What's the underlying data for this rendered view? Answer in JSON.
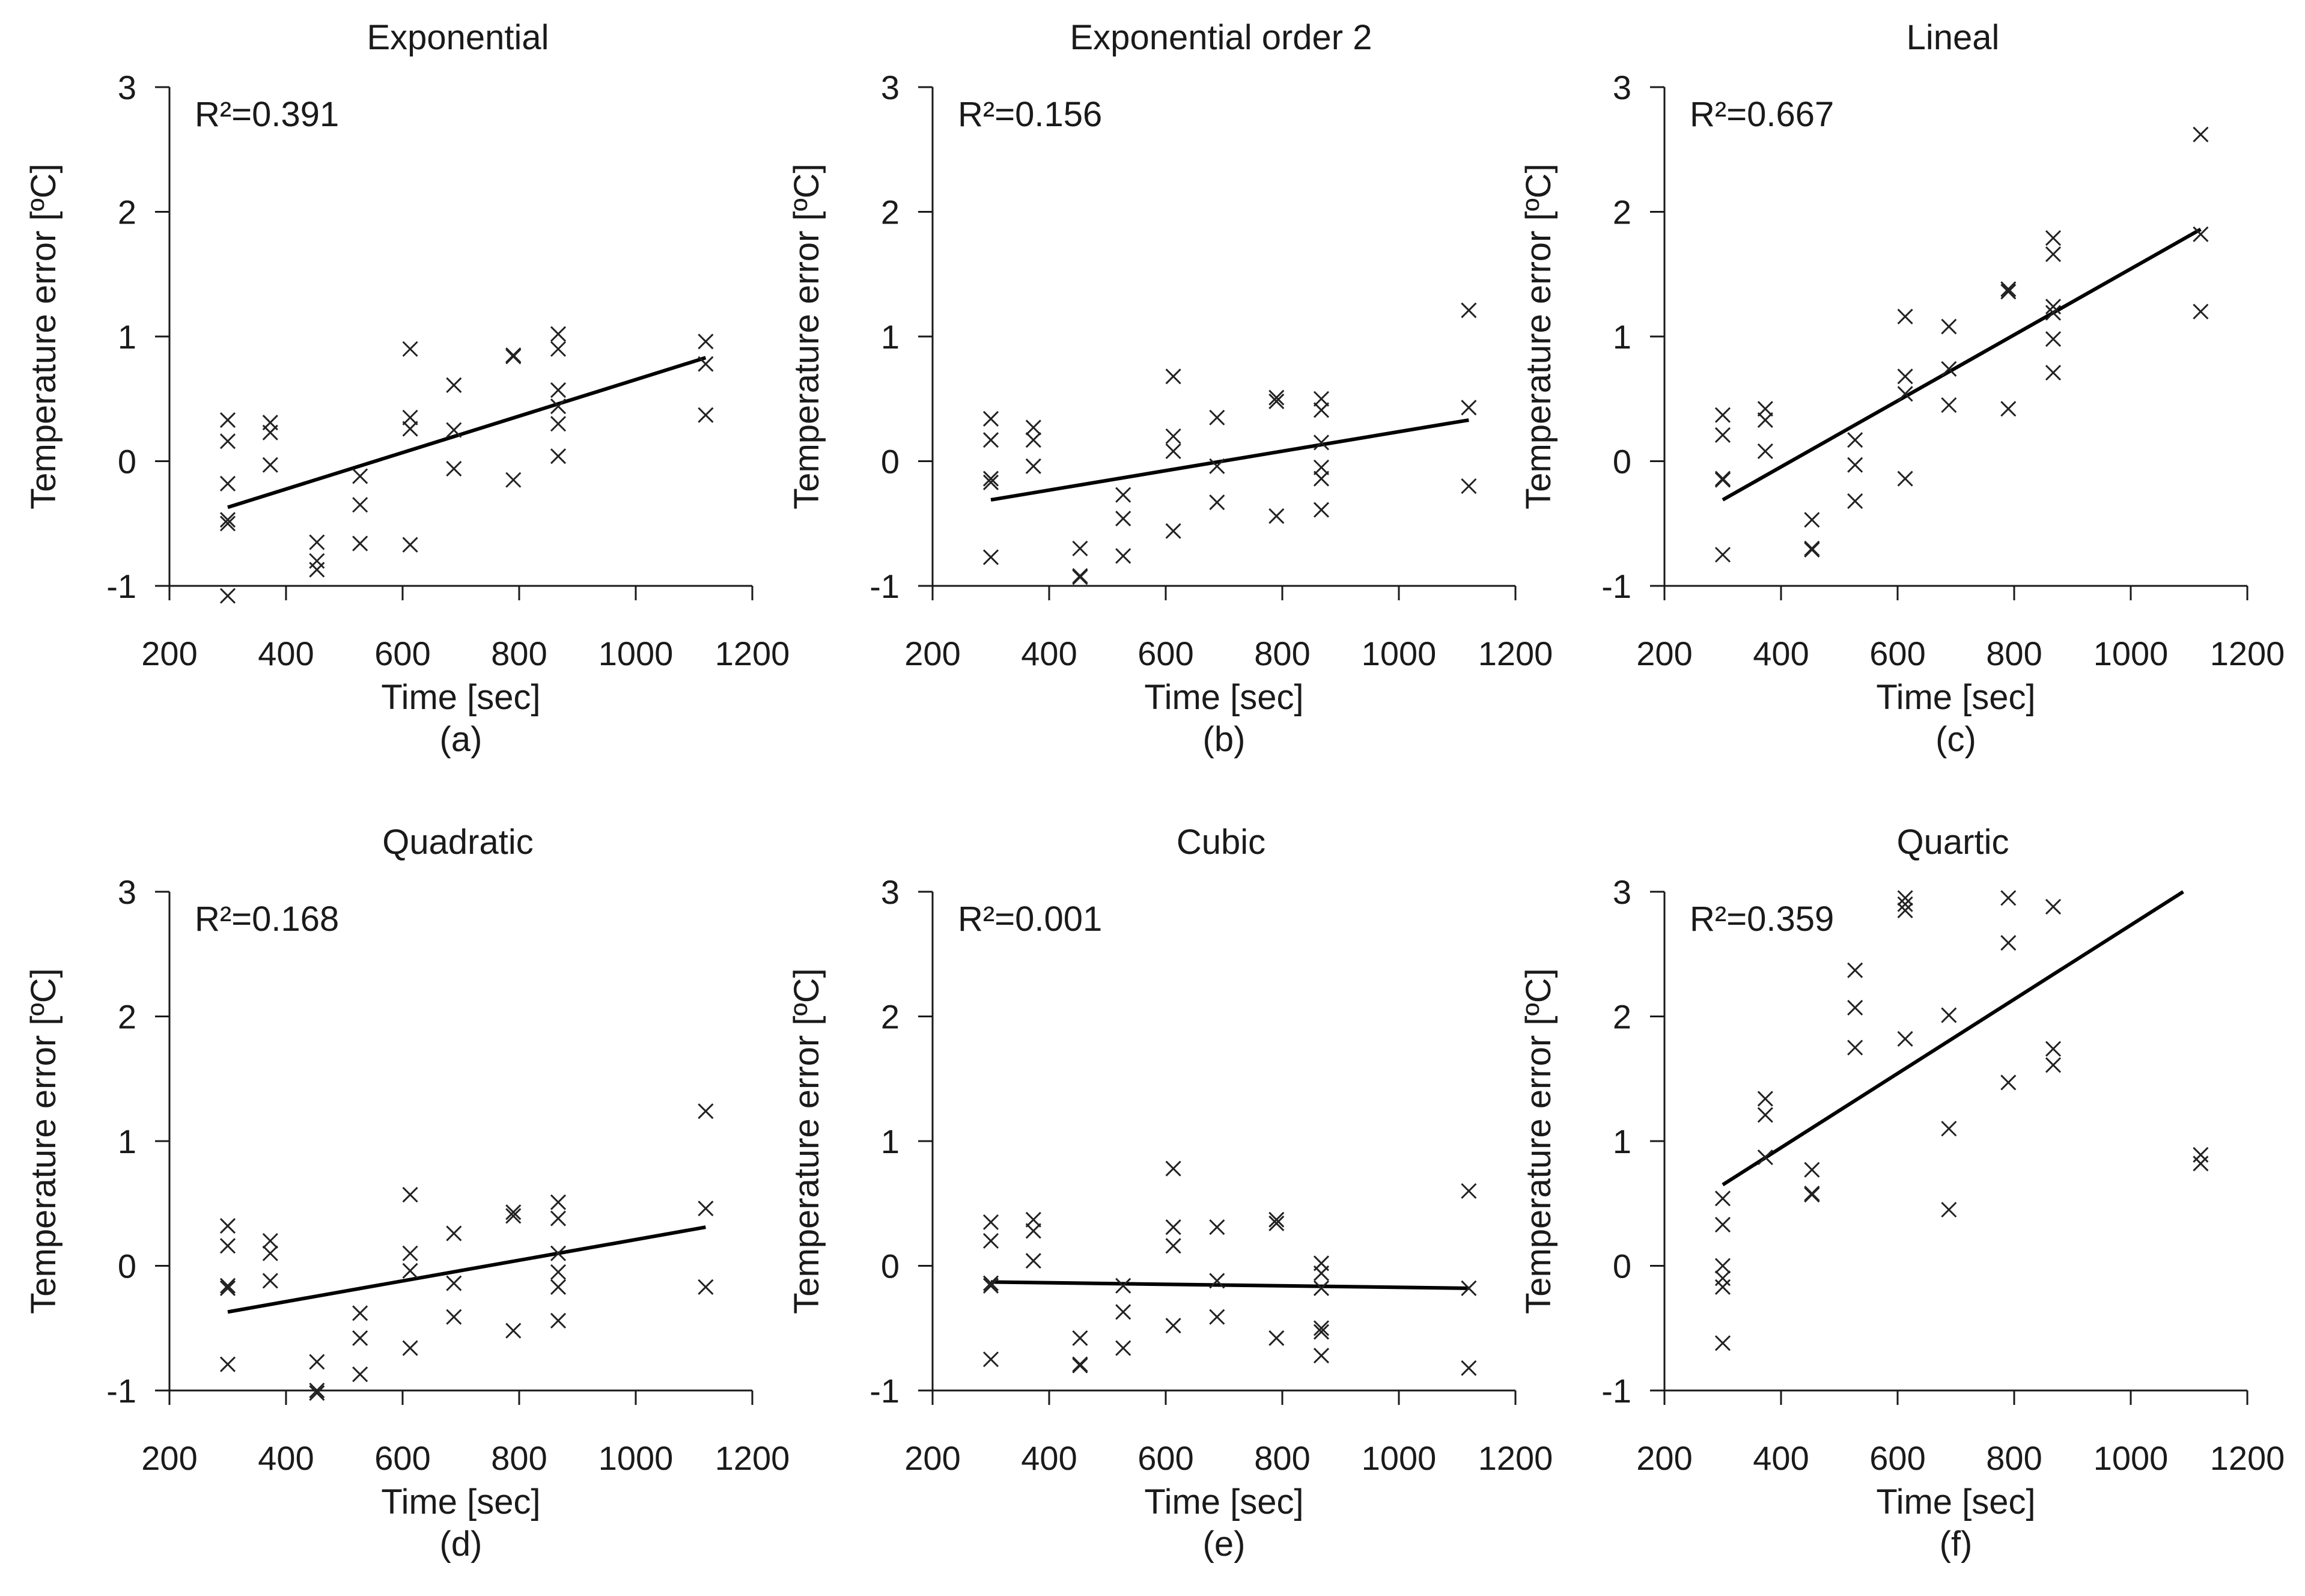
{
  "chart_data": [
    {
      "type": "scatter",
      "title": "Exponential",
      "sublabel": "(a)",
      "annotation": "R²=0.391",
      "xlabel": "Time [sec]",
      "ylabel": "Temperature error [ºC]",
      "xlim": [
        200,
        1200
      ],
      "ylim": [
        -1,
        3
      ],
      "xticks": [
        "200",
        "400",
        "600",
        "800",
        "1000",
        "1200"
      ],
      "yticks": [
        "-1",
        "0",
        "1",
        "2",
        "3"
      ],
      "marker": "x",
      "points": [
        [
          300,
          0.33
        ],
        [
          300,
          0.16
        ],
        [
          300,
          -0.18
        ],
        [
          300,
          -0.47
        ],
        [
          300,
          -0.5
        ],
        [
          300,
          -1.08
        ],
        [
          373,
          0.31
        ],
        [
          373,
          0.23
        ],
        [
          373,
          -0.03
        ],
        [
          453,
          -0.65
        ],
        [
          453,
          -0.8
        ],
        [
          453,
          -0.87
        ],
        [
          527,
          -0.12
        ],
        [
          527,
          -0.35
        ],
        [
          527,
          -0.66
        ],
        [
          613,
          0.9
        ],
        [
          613,
          0.35
        ],
        [
          613,
          0.26
        ],
        [
          613,
          -0.67
        ],
        [
          688,
          0.61
        ],
        [
          688,
          0.25
        ],
        [
          688,
          -0.06
        ],
        [
          790,
          0.85
        ],
        [
          790,
          0.84
        ],
        [
          790,
          -0.15
        ],
        [
          867,
          1.02
        ],
        [
          867,
          0.9
        ],
        [
          867,
          0.57
        ],
        [
          867,
          0.44
        ],
        [
          867,
          0.3
        ],
        [
          867,
          0.04
        ],
        [
          1120,
          0.96
        ],
        [
          1120,
          0.78
        ],
        [
          1120,
          0.37
        ]
      ],
      "fit_line": [
        [
          300,
          -0.37
        ],
        [
          1120,
          0.83
        ]
      ]
    },
    {
      "type": "scatter",
      "title": "Exponential order 2",
      "sublabel": "(b)",
      "annotation": "R²=0.156",
      "xlabel": "Time [sec]",
      "ylabel": "Temperature error [ºC]",
      "xlim": [
        200,
        1200
      ],
      "ylim": [
        -1,
        3
      ],
      "xticks": [
        "200",
        "400",
        "600",
        "800",
        "1000",
        "1200"
      ],
      "yticks": [
        "-1",
        "0",
        "1",
        "2",
        "3"
      ],
      "marker": "x",
      "points": [
        [
          300,
          0.34
        ],
        [
          300,
          0.17
        ],
        [
          300,
          -0.14
        ],
        [
          300,
          -0.17
        ],
        [
          300,
          -0.77
        ],
        [
          373,
          0.27
        ],
        [
          373,
          0.17
        ],
        [
          373,
          -0.04
        ],
        [
          453,
          -0.7
        ],
        [
          453,
          -0.92
        ],
        [
          453,
          -0.93
        ],
        [
          527,
          -0.27
        ],
        [
          527,
          -0.46
        ],
        [
          527,
          -0.76
        ],
        [
          613,
          0.68
        ],
        [
          613,
          0.2
        ],
        [
          613,
          0.08
        ],
        [
          613,
          -0.56
        ],
        [
          688,
          0.35
        ],
        [
          688,
          -0.04
        ],
        [
          688,
          -0.33
        ],
        [
          790,
          0.51
        ],
        [
          790,
          0.48
        ],
        [
          790,
          -0.44
        ],
        [
          867,
          0.5
        ],
        [
          867,
          0.41
        ],
        [
          867,
          0.15
        ],
        [
          867,
          -0.05
        ],
        [
          867,
          -0.14
        ],
        [
          867,
          -0.39
        ],
        [
          1120,
          1.21
        ],
        [
          1120,
          0.43
        ],
        [
          1120,
          -0.2
        ]
      ],
      "fit_line": [
        [
          300,
          -0.31
        ],
        [
          1120,
          0.33
        ]
      ]
    },
    {
      "type": "scatter",
      "title": "Lineal",
      "sublabel": "(c)",
      "annotation": "R²=0.667",
      "xlabel": "Time [sec]",
      "ylabel": "Temperature error [ºC]",
      "xlim": [
        200,
        1200
      ],
      "ylim": [
        -1,
        3
      ],
      "xticks": [
        "200",
        "400",
        "600",
        "800",
        "1000",
        "1200"
      ],
      "yticks": [
        "-1",
        "0",
        "1",
        "2",
        "3"
      ],
      "marker": "x",
      "points": [
        [
          300,
          0.37
        ],
        [
          300,
          0.21
        ],
        [
          300,
          -0.14
        ],
        [
          300,
          -0.15
        ],
        [
          300,
          -0.75
        ],
        [
          373,
          0.42
        ],
        [
          373,
          0.33
        ],
        [
          373,
          0.08
        ],
        [
          453,
          -0.47
        ],
        [
          453,
          -0.7
        ],
        [
          453,
          -0.71
        ],
        [
          527,
          0.17
        ],
        [
          527,
          -0.03
        ],
        [
          527,
          -0.32
        ],
        [
          613,
          1.16
        ],
        [
          613,
          0.68
        ],
        [
          613,
          0.54
        ],
        [
          613,
          -0.14
        ],
        [
          688,
          1.08
        ],
        [
          688,
          0.74
        ],
        [
          688,
          0.45
        ],
        [
          790,
          1.38
        ],
        [
          790,
          1.36
        ],
        [
          790,
          0.42
        ],
        [
          867,
          1.79
        ],
        [
          867,
          1.66
        ],
        [
          867,
          1.24
        ],
        [
          867,
          1.19
        ],
        [
          867,
          0.98
        ],
        [
          867,
          0.71
        ],
        [
          1120,
          2.62
        ],
        [
          1120,
          1.82
        ],
        [
          1120,
          1.2
        ]
      ],
      "fit_line": [
        [
          300,
          -0.31
        ],
        [
          1120,
          1.86
        ]
      ]
    },
    {
      "type": "scatter",
      "title": "Quadratic",
      "sublabel": "(d)",
      "annotation": "R²=0.168",
      "xlabel": "Time [sec]",
      "ylabel": "Temperature error [ºC]",
      "xlim": [
        200,
        1200
      ],
      "ylim": [
        -1,
        3
      ],
      "xticks": [
        "200",
        "400",
        "600",
        "800",
        "1000",
        "1200"
      ],
      "yticks": [
        "-1",
        "0",
        "1",
        "2",
        "3"
      ],
      "marker": "x",
      "points": [
        [
          300,
          0.32
        ],
        [
          300,
          0.16
        ],
        [
          300,
          -0.16
        ],
        [
          300,
          -0.18
        ],
        [
          300,
          -0.79
        ],
        [
          373,
          0.2
        ],
        [
          373,
          0.1
        ],
        [
          373,
          -0.12
        ],
        [
          453,
          -0.77
        ],
        [
          453,
          -1.0
        ],
        [
          453,
          -1.02
        ],
        [
          527,
          -0.38
        ],
        [
          527,
          -0.58
        ],
        [
          527,
          -0.87
        ],
        [
          613,
          0.57
        ],
        [
          613,
          0.1
        ],
        [
          613,
          -0.04
        ],
        [
          613,
          -0.66
        ],
        [
          688,
          0.26
        ],
        [
          688,
          -0.14
        ],
        [
          688,
          -0.41
        ],
        [
          790,
          0.43
        ],
        [
          790,
          0.4
        ],
        [
          790,
          -0.52
        ],
        [
          867,
          0.51
        ],
        [
          867,
          0.38
        ],
        [
          867,
          0.1
        ],
        [
          867,
          -0.05
        ],
        [
          867,
          -0.17
        ],
        [
          867,
          -0.44
        ],
        [
          1120,
          1.24
        ],
        [
          1120,
          0.46
        ],
        [
          1120,
          -0.17
        ]
      ],
      "fit_line": [
        [
          300,
          -0.37
        ],
        [
          1120,
          0.31
        ]
      ]
    },
    {
      "type": "scatter",
      "title": "Cubic",
      "sublabel": "(e)",
      "annotation": "R²=0.001",
      "xlabel": "Time [sec]",
      "ylabel": "Temperature error [ºC]",
      "xlim": [
        200,
        1200
      ],
      "ylim": [
        -1,
        3
      ],
      "xticks": [
        "200",
        "400",
        "600",
        "800",
        "1000",
        "1200"
      ],
      "yticks": [
        "-1",
        "0",
        "1",
        "2",
        "3"
      ],
      "marker": "x",
      "points": [
        [
          300,
          0.35
        ],
        [
          300,
          0.2
        ],
        [
          300,
          -0.14
        ],
        [
          300,
          -0.16
        ],
        [
          300,
          -0.75
        ],
        [
          373,
          0.37
        ],
        [
          373,
          0.28
        ],
        [
          373,
          0.04
        ],
        [
          453,
          -0.58
        ],
        [
          453,
          -0.79
        ],
        [
          453,
          -0.8
        ],
        [
          527,
          -0.16
        ],
        [
          527,
          -0.37
        ],
        [
          527,
          -0.66
        ],
        [
          613,
          0.78
        ],
        [
          613,
          0.31
        ],
        [
          613,
          0.16
        ],
        [
          613,
          -0.48
        ],
        [
          688,
          0.31
        ],
        [
          688,
          -0.12
        ],
        [
          688,
          -0.41
        ],
        [
          790,
          0.37
        ],
        [
          790,
          0.34
        ],
        [
          790,
          -0.58
        ],
        [
          867,
          0.02
        ],
        [
          867,
          -0.06
        ],
        [
          867,
          -0.18
        ],
        [
          867,
          -0.5
        ],
        [
          867,
          -0.53
        ],
        [
          867,
          -0.72
        ],
        [
          1120,
          0.6
        ],
        [
          1120,
          -0.18
        ],
        [
          1120,
          -0.82
        ]
      ],
      "fit_line": [
        [
          300,
          -0.13
        ],
        [
          1120,
          -0.18
        ]
      ]
    },
    {
      "type": "scatter",
      "title": "Quartic",
      "sublabel": "(f)",
      "annotation": "R²=0.359",
      "xlabel": "Time [sec]",
      "ylabel": "Temperature error [ºC]",
      "xlim": [
        200,
        1200
      ],
      "ylim": [
        -1,
        3
      ],
      "xticks": [
        "200",
        "400",
        "600",
        "800",
        "1000",
        "1200"
      ],
      "yticks": [
        "-1",
        "0",
        "1",
        "2",
        "3"
      ],
      "marker": "x",
      "points": [
        [
          300,
          0.54
        ],
        [
          300,
          0.33
        ],
        [
          300,
          0.0
        ],
        [
          300,
          -0.1
        ],
        [
          300,
          -0.17
        ],
        [
          300,
          -0.62
        ],
        [
          373,
          1.34
        ],
        [
          373,
          1.21
        ],
        [
          373,
          0.87
        ],
        [
          453,
          0.77
        ],
        [
          453,
          0.58
        ],
        [
          453,
          0.57
        ],
        [
          527,
          2.37
        ],
        [
          527,
          2.07
        ],
        [
          527,
          1.75
        ],
        [
          613,
          2.95
        ],
        [
          613,
          2.9
        ],
        [
          613,
          2.85
        ],
        [
          613,
          1.82
        ],
        [
          688,
          2.01
        ],
        [
          688,
          1.1
        ],
        [
          688,
          0.45
        ],
        [
          790,
          2.95
        ],
        [
          790,
          2.59
        ],
        [
          790,
          1.47
        ],
        [
          867,
          2.88
        ],
        [
          867,
          1.74
        ],
        [
          867,
          1.61
        ],
        [
          1120,
          0.89
        ],
        [
          1120,
          0.82
        ]
      ],
      "fit_line": [
        [
          300,
          0.65
        ],
        [
          1090,
          3.0
        ]
      ]
    }
  ]
}
